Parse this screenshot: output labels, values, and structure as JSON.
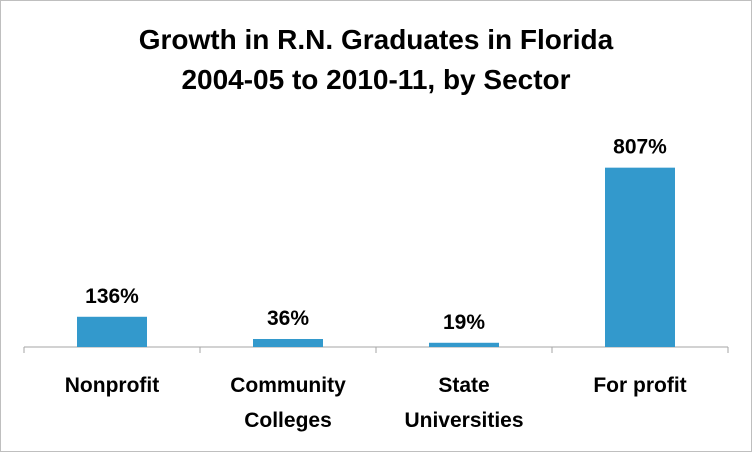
{
  "chart_data": {
    "type": "bar",
    "title_lines": [
      "Growth in R.N. Graduates in Florida",
      "2004-05 to 2010-11, by Sector"
    ],
    "categories": [
      [
        "Nonprofit"
      ],
      [
        "Community",
        "Colleges"
      ],
      [
        "State",
        "Universities"
      ],
      [
        "For profit"
      ]
    ],
    "values": [
      136,
      36,
      19,
      807
    ],
    "value_labels": [
      "136%",
      "36%",
      "19%",
      "807%"
    ],
    "ylim": [
      0,
      900
    ],
    "grid": false,
    "legend": "none",
    "bar_color": "#3399cc",
    "axis_color": "#a6a6a6"
  }
}
